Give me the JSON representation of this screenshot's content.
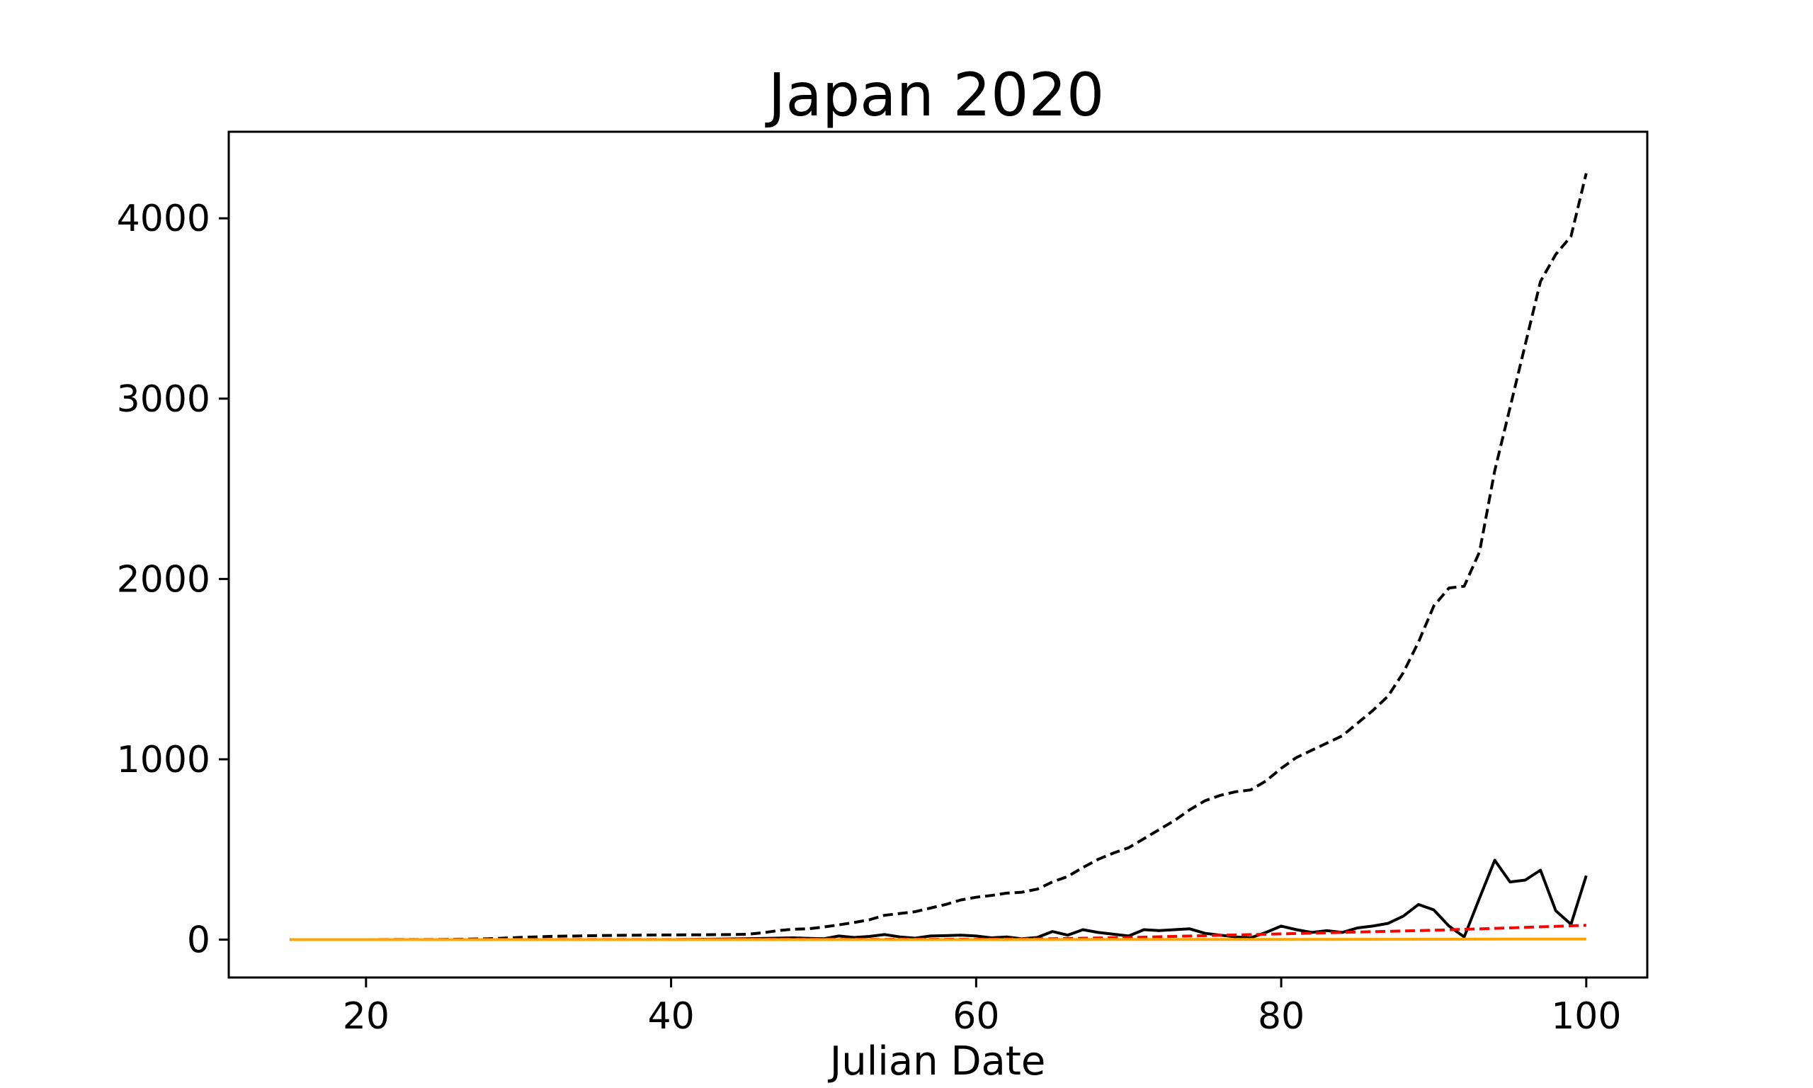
{
  "chart_data": {
    "type": "line",
    "title": "Japan 2020",
    "xlabel": "Julian Date",
    "ylabel": "",
    "xlim": [
      11,
      104
    ],
    "ylim": [
      -210,
      4480
    ],
    "xticks": [
      20,
      40,
      60,
      80,
      100
    ],
    "yticks": [
      0,
      1000,
      2000,
      3000,
      4000
    ],
    "grid": false,
    "legend": false,
    "series": [
      {
        "style": "dashed",
        "color": "#000000",
        "x": [
          15,
          20,
          25,
          28,
          30,
          32,
          35,
          38,
          40,
          42,
          44,
          45,
          46,
          47,
          48,
          49,
          50,
          51,
          52,
          53,
          54,
          55,
          56,
          57,
          58,
          59,
          60,
          61,
          62,
          63,
          64,
          65,
          66,
          67,
          68,
          69,
          70,
          71,
          72,
          73,
          74,
          75,
          76,
          77,
          78,
          79,
          80,
          81,
          82,
          83,
          84,
          85,
          86,
          87,
          88,
          89,
          90,
          91,
          92,
          93,
          94,
          95,
          96,
          97,
          98,
          99,
          100
        ],
        "values": [
          0,
          0,
          1,
          5,
          12,
          18,
          22,
          25,
          26,
          27,
          28,
          30,
          38,
          50,
          58,
          60,
          70,
          82,
          95,
          110,
          135,
          145,
          155,
          175,
          195,
          220,
          235,
          245,
          258,
          263,
          280,
          320,
          350,
          400,
          445,
          480,
          510,
          560,
          610,
          660,
          720,
          770,
          800,
          820,
          830,
          880,
          950,
          1010,
          1050,
          1090,
          1130,
          1200,
          1270,
          1350,
          1480,
          1650,
          1850,
          1950,
          1960,
          2150,
          2600,
          2950,
          3300,
          3650,
          3800,
          3900,
          4250
        ]
      },
      {
        "style": "solid",
        "color": "#000000",
        "x": [
          15,
          40,
          45,
          48,
          50,
          51,
          52,
          53,
          54,
          55,
          56,
          57,
          58,
          59,
          60,
          61,
          62,
          63,
          64,
          65,
          66,
          67,
          68,
          69,
          70,
          71,
          72,
          73,
          74,
          75,
          76,
          77,
          78,
          79,
          80,
          81,
          82,
          83,
          84,
          85,
          86,
          87,
          88,
          89,
          90,
          91,
          92,
          93,
          94,
          95,
          96,
          97,
          98,
          99,
          100
        ],
        "values": [
          0,
          0,
          5,
          10,
          5,
          20,
          12,
          18,
          28,
          15,
          8,
          20,
          22,
          25,
          20,
          10,
          15,
          5,
          12,
          45,
          25,
          55,
          40,
          30,
          20,
          55,
          50,
          55,
          60,
          35,
          25,
          15,
          10,
          40,
          75,
          55,
          40,
          50,
          40,
          65,
          75,
          90,
          130,
          195,
          165,
          75,
          15,
          230,
          440,
          320,
          330,
          385,
          160,
          85,
          355
        ]
      },
      {
        "style": "dashed",
        "color": "#ff0000",
        "x": [
          15,
          60,
          65,
          70,
          75,
          80,
          85,
          90,
          95,
          100
        ],
        "values": [
          0,
          2,
          5,
          12,
          22,
          32,
          42,
          52,
          65,
          80
        ]
      },
      {
        "style": "solid",
        "color": "#ffa500",
        "x": [
          15,
          60,
          70,
          80,
          90,
          95,
          100
        ],
        "values": [
          0,
          0,
          1,
          1,
          2,
          3,
          3
        ]
      }
    ]
  }
}
